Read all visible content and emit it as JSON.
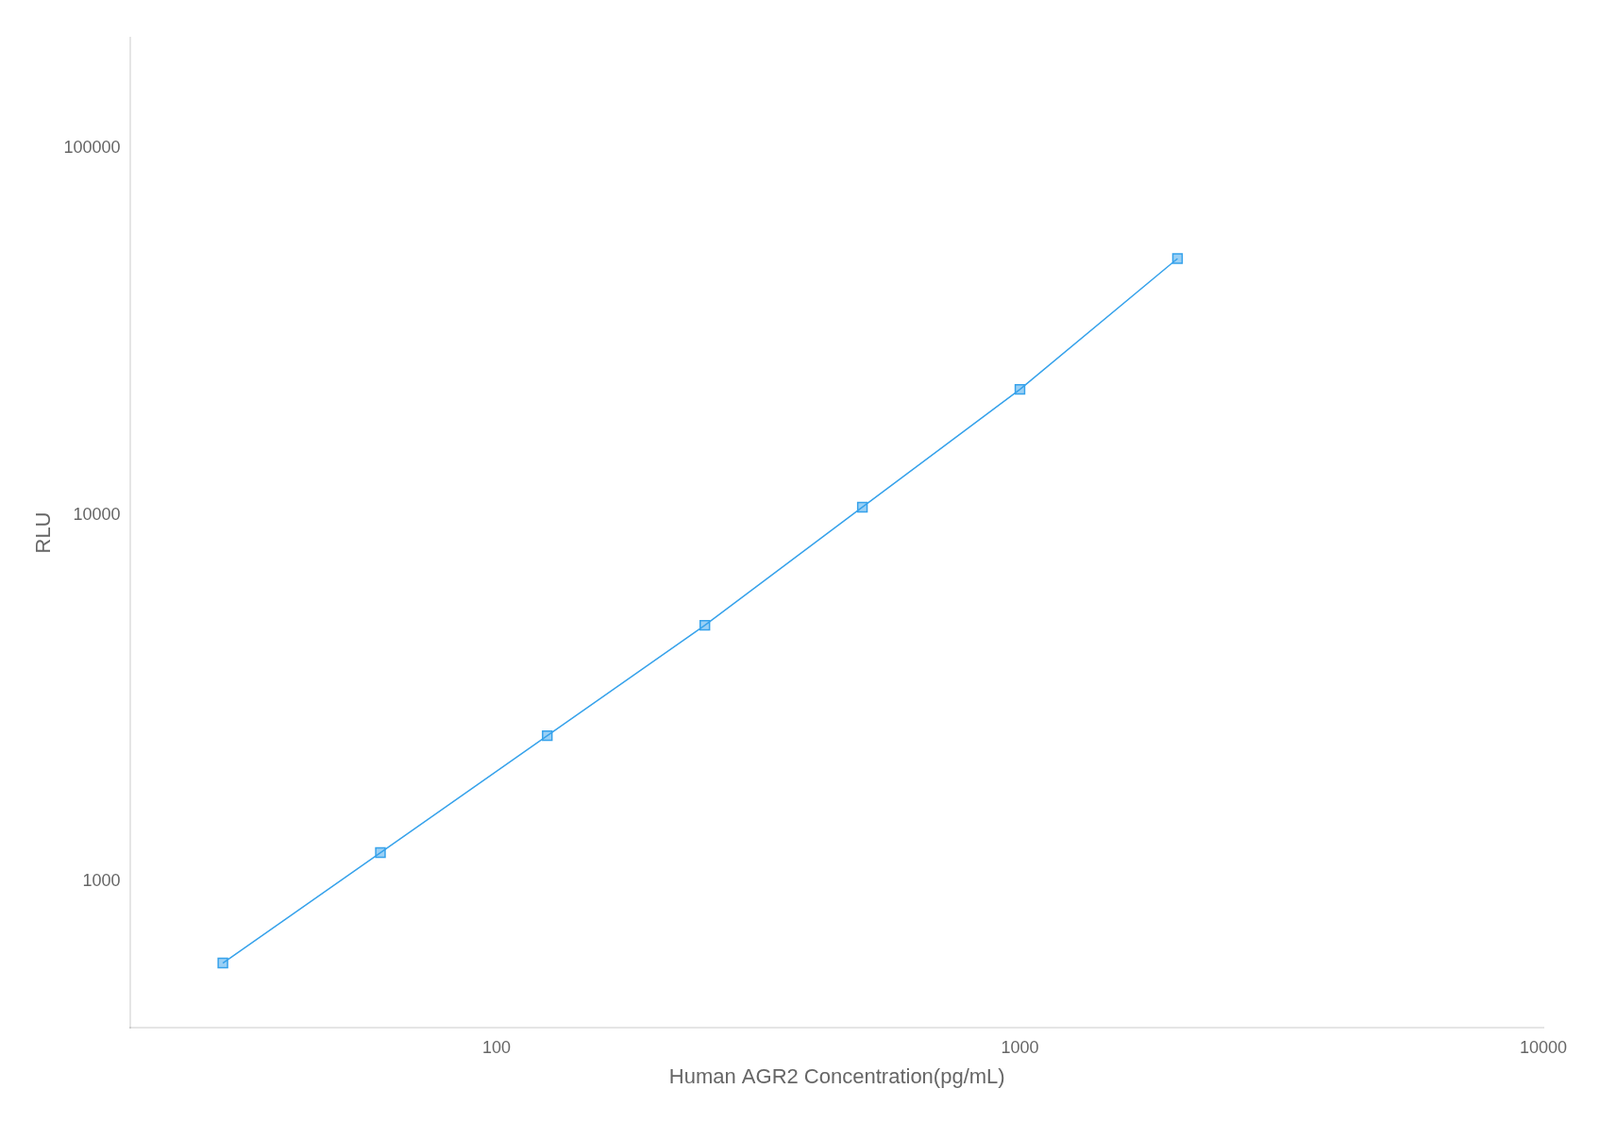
{
  "chart_data": {
    "type": "line",
    "xlabel": "Human AGR2 Concentration(pg/mL)",
    "ylabel": "RLU",
    "x": [
      30,
      60,
      125,
      250,
      500,
      1000,
      2000
    ],
    "values": [
      600,
      1200,
      2500,
      5000,
      10500,
      22000,
      50000
    ],
    "xlim": [
      20,
      10000
    ],
    "ylim": [
      400,
      200000
    ],
    "xticks": [
      100,
      1000,
      10000
    ],
    "yticks": [
      1000,
      10000,
      100000
    ],
    "log": true,
    "grid": false,
    "marker": "square"
  }
}
